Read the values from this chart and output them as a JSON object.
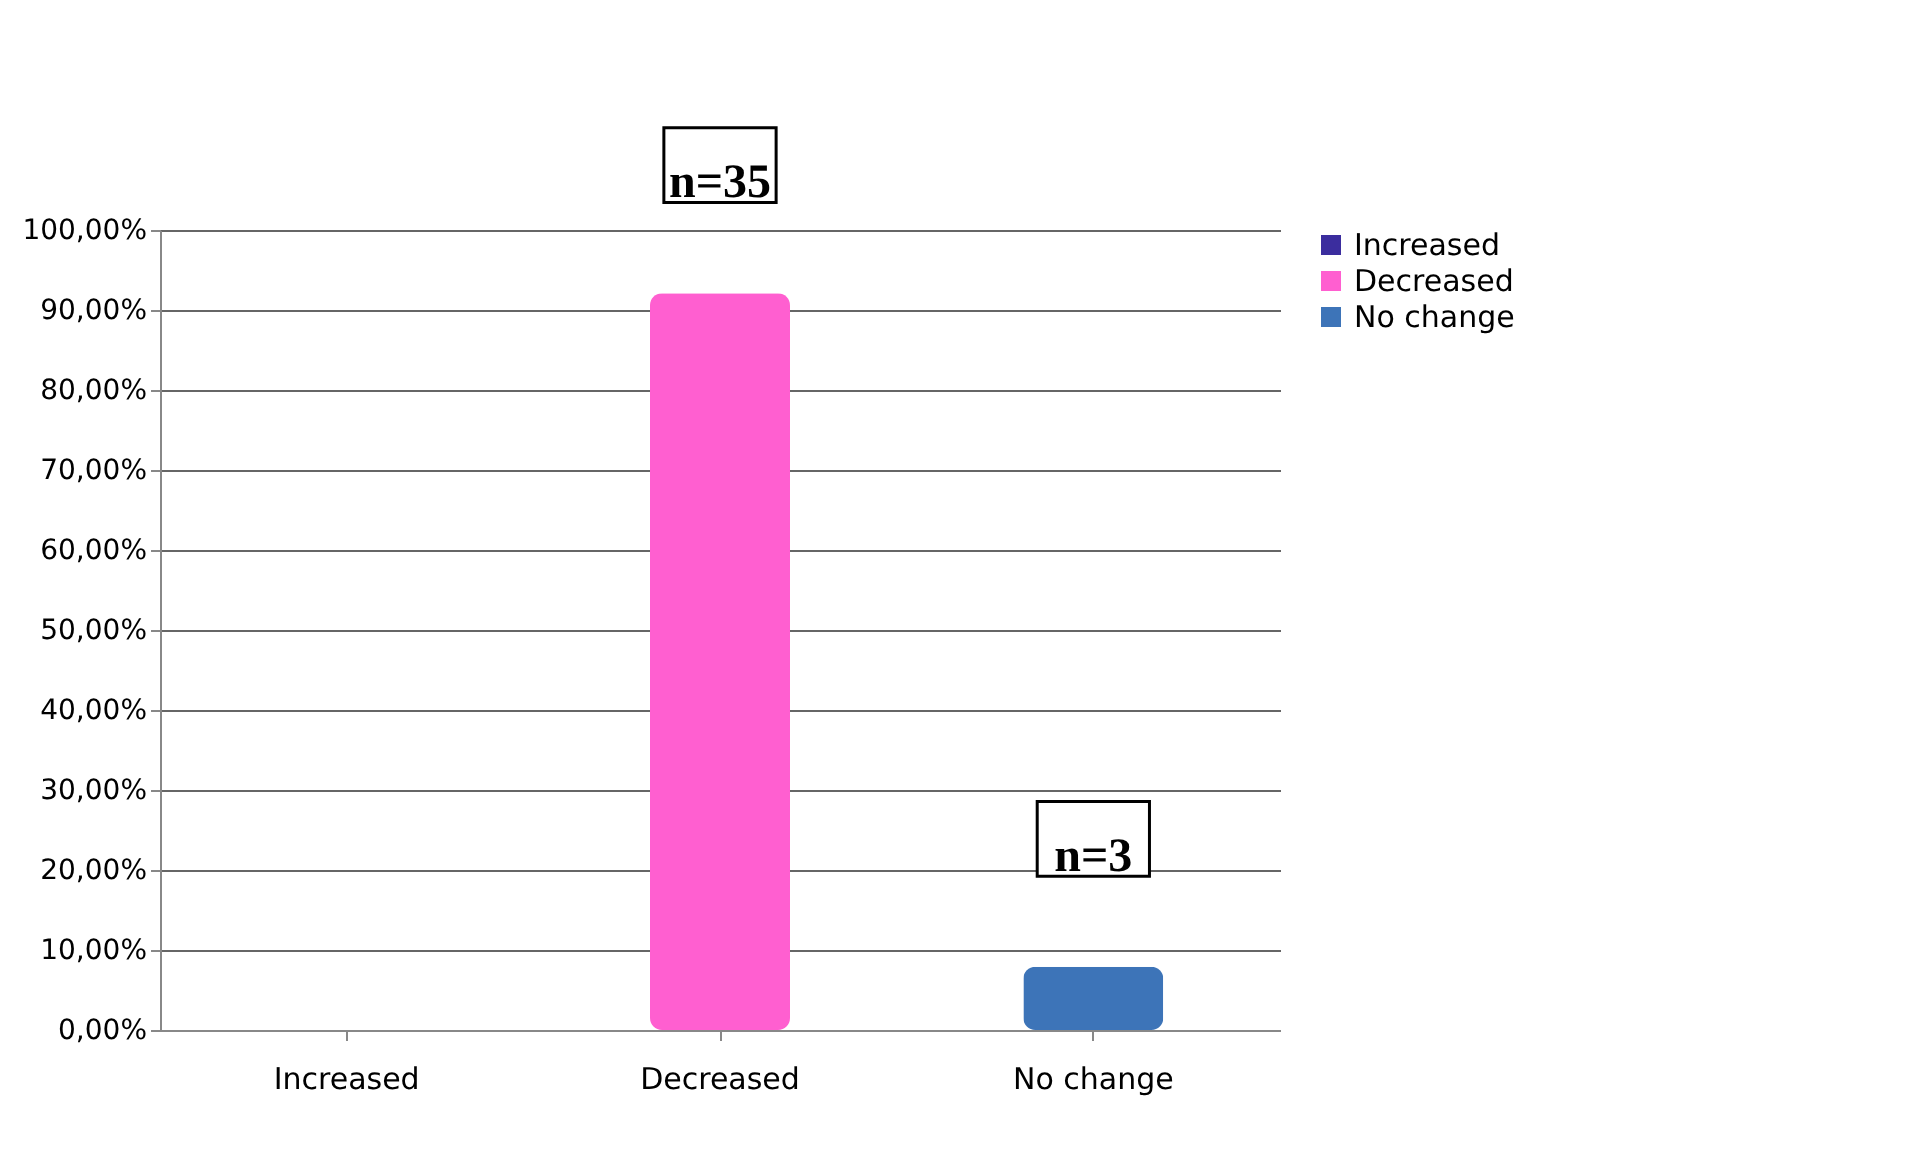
{
  "chart_data": {
    "type": "bar",
    "categories": [
      "Increased",
      "Decreased",
      "No change"
    ],
    "series": [
      {
        "name": "Increased",
        "color": "#3b2d9e",
        "values": [
          0,
          null,
          null
        ]
      },
      {
        "name": "Decreased",
        "color": "#ff5fd0",
        "values": [
          null,
          92.1,
          null
        ]
      },
      {
        "name": "No change",
        "color": "#3d74b8",
        "values": [
          null,
          null,
          7.9
        ]
      }
    ],
    "ylim": [
      0,
      100
    ],
    "yticks": [
      {
        "value": 0,
        "label": "0,00%"
      },
      {
        "value": 10,
        "label": "10,00%"
      },
      {
        "value": 20,
        "label": "20,00%"
      },
      {
        "value": 30,
        "label": "30,00%"
      },
      {
        "value": 40,
        "label": "40,00%"
      },
      {
        "value": 50,
        "label": "50,00%"
      },
      {
        "value": 60,
        "label": "60,00%"
      },
      {
        "value": 70,
        "label": "70,00%"
      },
      {
        "value": 80,
        "label": "80,00%"
      },
      {
        "value": 90,
        "label": "90,00%"
      },
      {
        "value": 100,
        "label": "100,00%"
      }
    ],
    "annotations": [
      {
        "text": "n=35",
        "x": "Decreased",
        "y": 92.1
      },
      {
        "text": "n=3",
        "x": "No change",
        "y": 7.9
      }
    ],
    "grid": "y",
    "legend": "right"
  }
}
